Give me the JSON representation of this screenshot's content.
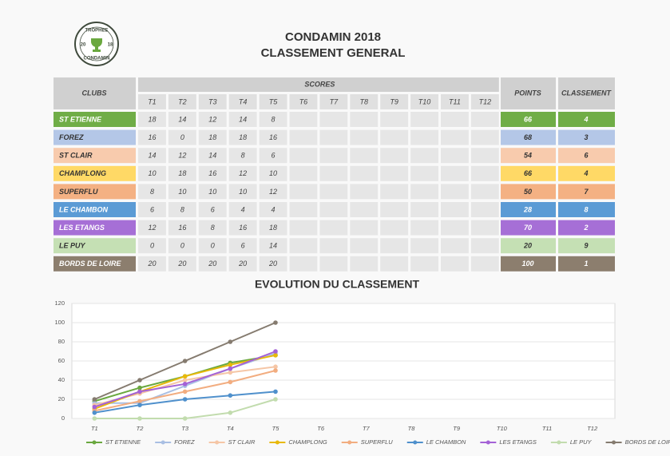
{
  "logo": {
    "top": "TROPHEE",
    "left": "20",
    "right": "18",
    "bottom": "CONDAMIN"
  },
  "header": {
    "title": "CONDAMIN 2018",
    "subtitle": "CLASSEMENT GENERAL"
  },
  "table": {
    "headers": {
      "clubs": "CLUBS",
      "scores": "SCORES",
      "points": "POINTS",
      "rank": "CLASSEMENT"
    },
    "rounds": [
      "T1",
      "T2",
      "T3",
      "T4",
      "T5",
      "T6",
      "T7",
      "T8",
      "T9",
      "T10",
      "T11",
      "T12"
    ],
    "rows": [
      {
        "club": "ST ETIENNE",
        "color": "#70ad47",
        "text_color": "#ffffff",
        "scores": [
          18,
          14,
          12,
          14,
          8
        ],
        "points": 66,
        "rank": 4
      },
      {
        "club": "FOREZ",
        "color": "#b4c7e7",
        "text_color": "#333333",
        "scores": [
          16,
          0,
          18,
          18,
          16
        ],
        "points": 68,
        "rank": 3
      },
      {
        "club": "ST CLAIR",
        "color": "#f8cbad",
        "text_color": "#333333",
        "scores": [
          14,
          12,
          14,
          8,
          6
        ],
        "points": 54,
        "rank": 6
      },
      {
        "club": "CHAMPLONG",
        "color": "#ffd966",
        "text_color": "#333333",
        "scores": [
          10,
          18,
          16,
          12,
          10
        ],
        "points": 66,
        "rank": 4
      },
      {
        "club": "SUPERFLU",
        "color": "#f4b183",
        "text_color": "#333333",
        "scores": [
          8,
          10,
          10,
          10,
          12
        ],
        "points": 50,
        "rank": 7
      },
      {
        "club": "LE CHAMBON",
        "color": "#5b9bd5",
        "text_color": "#ffffff",
        "scores": [
          6,
          8,
          6,
          4,
          4
        ],
        "points": 28,
        "rank": 8
      },
      {
        "club": "LES ETANGS",
        "color": "#a66fd6",
        "text_color": "#ffffff",
        "scores": [
          12,
          16,
          8,
          16,
          18
        ],
        "points": 70,
        "rank": 2
      },
      {
        "club": "LE PUY",
        "color": "#c5e0b4",
        "text_color": "#333333",
        "scores": [
          0,
          0,
          0,
          6,
          14
        ],
        "points": 20,
        "rank": 9
      },
      {
        "club": "BORDS DE LOIRE",
        "color": "#8c7e6e",
        "text_color": "#ffffff",
        "scores": [
          20,
          20,
          20,
          20,
          20
        ],
        "points": 100,
        "rank": 1
      }
    ]
  },
  "chart_data": {
    "type": "line",
    "title": "EVOLUTION DU CLASSEMENT",
    "categories": [
      "T1",
      "T2",
      "T3",
      "T4",
      "T5",
      "T6",
      "T7",
      "T8",
      "T9",
      "T10",
      "T11",
      "T12"
    ],
    "ylim": [
      0,
      120
    ],
    "yticks": [
      0,
      20,
      40,
      60,
      80,
      100,
      120
    ],
    "grid": true,
    "legend": "bottom",
    "series": [
      {
        "name": "ST ETIENNE",
        "color": "#6aa83f",
        "values": [
          18,
          32,
          44,
          58,
          66,
          null,
          null,
          null,
          null,
          null,
          null,
          null
        ]
      },
      {
        "name": "FOREZ",
        "color": "#a9bfe3",
        "values": [
          16,
          16,
          34,
          52,
          68,
          null,
          null,
          null,
          null,
          null,
          null,
          null
        ]
      },
      {
        "name": "ST CLAIR",
        "color": "#f5c6a6",
        "values": [
          14,
          26,
          40,
          48,
          54,
          null,
          null,
          null,
          null,
          null,
          null,
          null
        ]
      },
      {
        "name": "CHAMPLONG",
        "color": "#e8b90a",
        "values": [
          10,
          28,
          44,
          56,
          66,
          null,
          null,
          null,
          null,
          null,
          null,
          null
        ]
      },
      {
        "name": "SUPERFLU",
        "color": "#f2ad80",
        "values": [
          8,
          18,
          28,
          38,
          50,
          null,
          null,
          null,
          null,
          null,
          null,
          null
        ]
      },
      {
        "name": "LE CHAMBON",
        "color": "#4f90cc",
        "values": [
          6,
          14,
          20,
          24,
          28,
          null,
          null,
          null,
          null,
          null,
          null,
          null
        ]
      },
      {
        "name": "LES ETANGS",
        "color": "#a462d6",
        "values": [
          12,
          28,
          36,
          52,
          70,
          null,
          null,
          null,
          null,
          null,
          null,
          null
        ]
      },
      {
        "name": "LE PUY",
        "color": "#c2dcae",
        "values": [
          0,
          0,
          0,
          6,
          20,
          null,
          null,
          null,
          null,
          null,
          null,
          null
        ]
      },
      {
        "name": "BORDS DE LOIRE",
        "color": "#857b6f",
        "values": [
          20,
          40,
          60,
          80,
          100,
          null,
          null,
          null,
          null,
          null,
          null,
          null
        ]
      }
    ]
  }
}
